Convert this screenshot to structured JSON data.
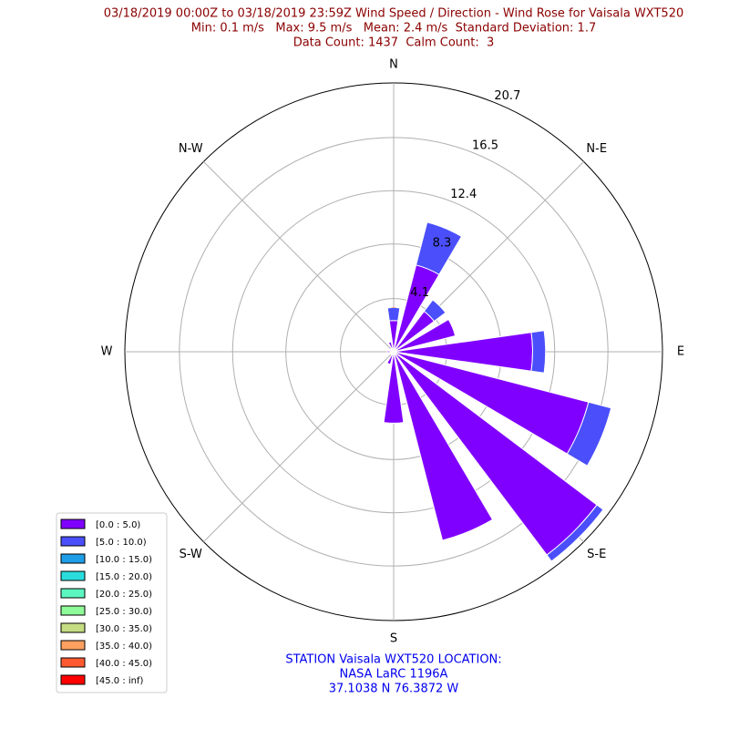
{
  "chart_data": {
    "type": "windrose",
    "title": "03/18/2019 00:00Z to 03/18/2019 23:59Z Wind Speed / Direction - Wind Rose for Vaisala WXT520",
    "subtitle": [
      "Min: 0.1 m/s   Max: 9.5 m/s   Mean: 2.4 m/s  Standard Deviation: 1.7",
      "Data Count: 1437  Calm Count:  3"
    ],
    "annotation": [
      "STATION Vaisala WXT520 LOCATION:",
      "NASA LaRC 1196A",
      "37.1038 N 76.3872 W"
    ],
    "x": [
      0,
      22.5,
      45,
      67.5,
      90,
      112.5,
      135,
      157.5,
      180,
      202.5,
      225,
      247.5,
      270,
      292.5,
      315,
      337.5
    ],
    "xticks": [
      {
        "value": 0,
        "label": "N"
      },
      {
        "value": 45,
        "label": "N-E"
      },
      {
        "value": 90,
        "label": "E"
      },
      {
        "value": 135,
        "label": "S-E"
      },
      {
        "value": 180,
        "label": "S"
      },
      {
        "value": 225,
        "label": "S-W"
      },
      {
        "value": 270,
        "label": "W"
      },
      {
        "value": 315,
        "label": "N-W"
      }
    ],
    "ylim": [
      0,
      20.7
    ],
    "yticks": [
      4.1,
      8.3,
      12.4,
      16.5,
      20.7
    ],
    "grid": true,
    "legend": "lower left",
    "series": [
      {
        "name": "[0.0 : 5.0)",
        "color": "#8000ff",
        "values": [
          2.4,
          6.9,
          3.9,
          4.9,
          10.7,
          15.5,
          19.6,
          15.0,
          5.5,
          1.0,
          0.3,
          0.2,
          0.5,
          0.3,
          0.3,
          0.8
        ]
      },
      {
        "name": "[5.0 : 10.0)",
        "color": "#4a4ffb",
        "values": [
          1.0,
          3.4,
          1.1,
          0,
          1.0,
          1.8,
          0.6,
          0,
          0,
          0,
          0,
          0,
          0,
          0,
          0,
          0
        ]
      },
      {
        "name": "[10.0 : 15.0)",
        "color": "#1e9ee6",
        "values": [
          0,
          0,
          0,
          0,
          0,
          0,
          0,
          0,
          0,
          0,
          0,
          0,
          0,
          0,
          0,
          0
        ]
      },
      {
        "name": "[15.0 : 20.0)",
        "color": "#2adcdc",
        "values": [
          0,
          0,
          0,
          0,
          0,
          0,
          0,
          0,
          0,
          0,
          0,
          0,
          0,
          0,
          0,
          0
        ]
      },
      {
        "name": "[20.0 : 25.0)",
        "color": "#5cf7c0",
        "values": [
          0,
          0,
          0,
          0,
          0,
          0,
          0,
          0,
          0,
          0,
          0,
          0,
          0,
          0,
          0,
          0
        ]
      },
      {
        "name": "[25.0 : 30.0)",
        "color": "#8ffb98",
        "values": [
          0,
          0,
          0,
          0,
          0,
          0,
          0,
          0,
          0,
          0,
          0,
          0,
          0,
          0,
          0,
          0
        ]
      },
      {
        "name": "[30.0 : 35.0)",
        "color": "#c6dc82",
        "values": [
          0,
          0,
          0,
          0,
          0,
          0,
          0,
          0,
          0,
          0,
          0,
          0,
          0,
          0,
          0,
          0
        ]
      },
      {
        "name": "[35.0 : 40.0)",
        "color": "#ffa060",
        "values": [
          0,
          0,
          0,
          0,
          0,
          0,
          0,
          0,
          0,
          0,
          0,
          0,
          0,
          0,
          0,
          0
        ]
      },
      {
        "name": "[40.0 : 45.0)",
        "color": "#ff5a32",
        "values": [
          0,
          0,
          0,
          0,
          0,
          0,
          0,
          0,
          0,
          0,
          0,
          0,
          0,
          0,
          0,
          0
        ]
      },
      {
        "name": "[45.0 : inf)",
        "color": "#ff0000",
        "values": [
          0,
          0,
          0,
          0,
          0,
          0,
          0,
          0,
          0,
          0,
          0,
          0,
          0,
          0,
          0,
          0
        ]
      }
    ]
  }
}
